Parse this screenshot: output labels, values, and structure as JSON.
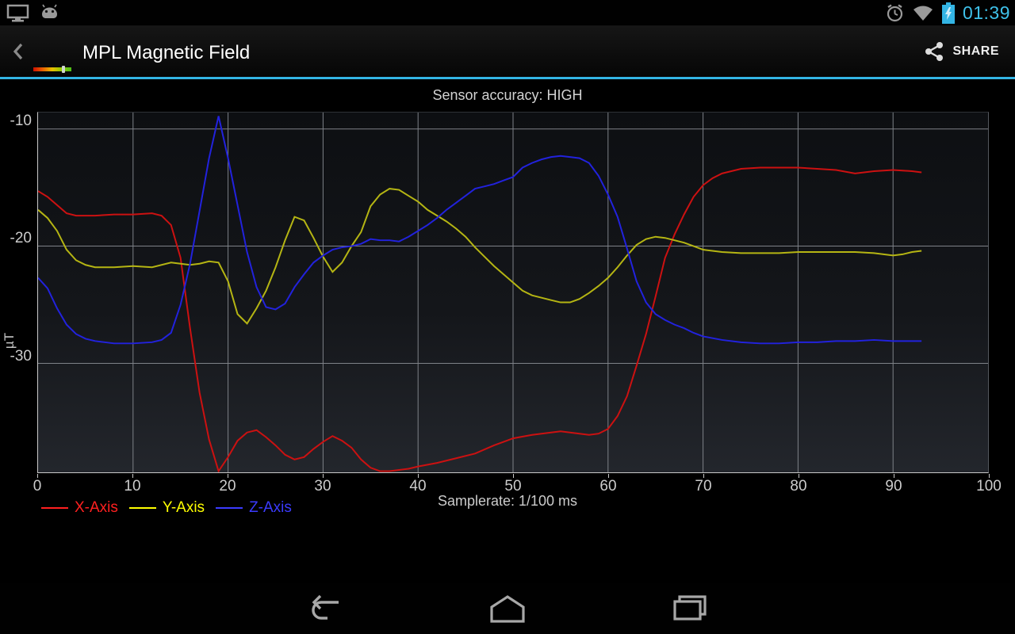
{
  "status_bar": {
    "time": "01:39",
    "left_icons": [
      "display-mirroring-icon",
      "usb-debugging-android-icon"
    ],
    "right_icons": [
      "alarm-icon",
      "wifi-icon",
      "battery-charging-icon"
    ],
    "accent_color": "#3fc1ea"
  },
  "action_bar": {
    "title": "MPL Magnetic Field",
    "share_label": "SHARE",
    "underline_color": "#33b5e5"
  },
  "chart_data": {
    "type": "line",
    "title": "Sensor accuracy: HIGH",
    "xlabel": "Samplerate: 1/100 ms",
    "ylabel": "µT",
    "xlim": [
      0,
      100
    ],
    "ylim": [
      -39.3,
      -8.6
    ],
    "x_ticks": [
      0,
      10,
      20,
      30,
      40,
      50,
      60,
      70,
      80,
      90,
      100
    ],
    "y_ticks": [
      -10,
      -20,
      -30
    ],
    "grid": true,
    "legend_position": "bottom-left",
    "series": [
      {
        "name": "X-Axis",
        "color": "#cc1111",
        "legend_color": "#ff2020",
        "points": [
          [
            0,
            -15.3
          ],
          [
            1,
            -15.8
          ],
          [
            2,
            -16.5
          ],
          [
            3,
            -17.2
          ],
          [
            4,
            -17.4
          ],
          [
            6,
            -17.4
          ],
          [
            8,
            -17.3
          ],
          [
            10,
            -17.3
          ],
          [
            12,
            -17.2
          ],
          [
            13,
            -17.4
          ],
          [
            14,
            -18.2
          ],
          [
            15,
            -21.0
          ],
          [
            16,
            -27.0
          ],
          [
            17,
            -32.5
          ],
          [
            18,
            -36.5
          ],
          [
            19,
            -39.2
          ],
          [
            20,
            -38.0
          ],
          [
            21,
            -36.6
          ],
          [
            22,
            -35.9
          ],
          [
            23,
            -35.7
          ],
          [
            24,
            -36.3
          ],
          [
            25,
            -37.0
          ],
          [
            26,
            -37.8
          ],
          [
            27,
            -38.2
          ],
          [
            28,
            -38.0
          ],
          [
            29,
            -37.3
          ],
          [
            30,
            -36.7
          ],
          [
            31,
            -36.2
          ],
          [
            32,
            -36.6
          ],
          [
            33,
            -37.2
          ],
          [
            34,
            -38.2
          ],
          [
            35,
            -38.9
          ],
          [
            36,
            -39.2
          ],
          [
            37,
            -39.2
          ],
          [
            38,
            -39.1
          ],
          [
            39,
            -39.0
          ],
          [
            40,
            -38.8
          ],
          [
            42,
            -38.5
          ],
          [
            44,
            -38.1
          ],
          [
            46,
            -37.7
          ],
          [
            48,
            -37.0
          ],
          [
            50,
            -36.4
          ],
          [
            52,
            -36.1
          ],
          [
            54,
            -35.9
          ],
          [
            55,
            -35.8
          ],
          [
            56,
            -35.9
          ],
          [
            57,
            -36.0
          ],
          [
            58,
            -36.1
          ],
          [
            59,
            -36.0
          ],
          [
            60,
            -35.6
          ],
          [
            61,
            -34.5
          ],
          [
            62,
            -32.8
          ],
          [
            63,
            -30.2
          ],
          [
            64,
            -27.5
          ],
          [
            65,
            -24.3
          ],
          [
            66,
            -21.0
          ],
          [
            67,
            -19.0
          ],
          [
            68,
            -17.3
          ],
          [
            69,
            -15.8
          ],
          [
            70,
            -14.8
          ],
          [
            71,
            -14.2
          ],
          [
            72,
            -13.8
          ],
          [
            74,
            -13.4
          ],
          [
            76,
            -13.3
          ],
          [
            78,
            -13.3
          ],
          [
            80,
            -13.3
          ],
          [
            82,
            -13.4
          ],
          [
            84,
            -13.5
          ],
          [
            86,
            -13.8
          ],
          [
            88,
            -13.6
          ],
          [
            90,
            -13.5
          ],
          [
            92,
            -13.6
          ],
          [
            93,
            -13.7
          ]
        ]
      },
      {
        "name": "Y-Axis",
        "color": "#b5b513",
        "legend_color": "#ffff00",
        "points": [
          [
            0,
            -16.9
          ],
          [
            1,
            -17.6
          ],
          [
            2,
            -18.7
          ],
          [
            3,
            -20.3
          ],
          [
            4,
            -21.2
          ],
          [
            5,
            -21.6
          ],
          [
            6,
            -21.8
          ],
          [
            8,
            -21.8
          ],
          [
            10,
            -21.7
          ],
          [
            12,
            -21.8
          ],
          [
            14,
            -21.4
          ],
          [
            15,
            -21.5
          ],
          [
            16,
            -21.6
          ],
          [
            17,
            -21.5
          ],
          [
            18,
            -21.3
          ],
          [
            19,
            -21.4
          ],
          [
            20,
            -23.0
          ],
          [
            21,
            -25.8
          ],
          [
            22,
            -26.6
          ],
          [
            23,
            -25.3
          ],
          [
            24,
            -23.8
          ],
          [
            25,
            -21.8
          ],
          [
            26,
            -19.5
          ],
          [
            27,
            -17.5
          ],
          [
            28,
            -17.8
          ],
          [
            29,
            -19.3
          ],
          [
            30,
            -20.9
          ],
          [
            31,
            -22.2
          ],
          [
            32,
            -21.4
          ],
          [
            33,
            -20.0
          ],
          [
            34,
            -18.8
          ],
          [
            35,
            -16.6
          ],
          [
            36,
            -15.6
          ],
          [
            37,
            -15.1
          ],
          [
            38,
            -15.2
          ],
          [
            39,
            -15.7
          ],
          [
            40,
            -16.2
          ],
          [
            41,
            -16.9
          ],
          [
            42,
            -17.4
          ],
          [
            43,
            -17.9
          ],
          [
            44,
            -18.5
          ],
          [
            45,
            -19.2
          ],
          [
            46,
            -20.1
          ],
          [
            47,
            -20.9
          ],
          [
            48,
            -21.7
          ],
          [
            49,
            -22.4
          ],
          [
            50,
            -23.1
          ],
          [
            51,
            -23.8
          ],
          [
            52,
            -24.2
          ],
          [
            53,
            -24.4
          ],
          [
            54,
            -24.6
          ],
          [
            55,
            -24.8
          ],
          [
            56,
            -24.8
          ],
          [
            57,
            -24.5
          ],
          [
            58,
            -24.0
          ],
          [
            59,
            -23.4
          ],
          [
            60,
            -22.7
          ],
          [
            61,
            -21.8
          ],
          [
            62,
            -20.8
          ],
          [
            63,
            -19.9
          ],
          [
            64,
            -19.4
          ],
          [
            65,
            -19.2
          ],
          [
            66,
            -19.3
          ],
          [
            67,
            -19.5
          ],
          [
            68,
            -19.7
          ],
          [
            69,
            -20.0
          ],
          [
            70,
            -20.3
          ],
          [
            72,
            -20.5
          ],
          [
            74,
            -20.6
          ],
          [
            76,
            -20.6
          ],
          [
            78,
            -20.6
          ],
          [
            80,
            -20.5
          ],
          [
            82,
            -20.5
          ],
          [
            84,
            -20.5
          ],
          [
            86,
            -20.5
          ],
          [
            88,
            -20.6
          ],
          [
            90,
            -20.8
          ],
          [
            91,
            -20.7
          ],
          [
            92,
            -20.5
          ],
          [
            93,
            -20.4
          ]
        ]
      },
      {
        "name": "Z-Axis",
        "color": "#2222dd",
        "legend_color": "#3b3bff",
        "points": [
          [
            0,
            -22.7
          ],
          [
            1,
            -23.6
          ],
          [
            2,
            -25.3
          ],
          [
            3,
            -26.7
          ],
          [
            4,
            -27.5
          ],
          [
            5,
            -27.9
          ],
          [
            6,
            -28.1
          ],
          [
            7,
            -28.2
          ],
          [
            8,
            -28.3
          ],
          [
            10,
            -28.3
          ],
          [
            12,
            -28.2
          ],
          [
            13,
            -28.0
          ],
          [
            14,
            -27.4
          ],
          [
            15,
            -25.0
          ],
          [
            16,
            -21.5
          ],
          [
            17,
            -17.0
          ],
          [
            18,
            -12.5
          ],
          [
            19,
            -8.9
          ],
          [
            20,
            -12.5
          ],
          [
            21,
            -16.5
          ],
          [
            22,
            -20.5
          ],
          [
            23,
            -23.5
          ],
          [
            24,
            -25.2
          ],
          [
            25,
            -25.4
          ],
          [
            26,
            -24.9
          ],
          [
            27,
            -23.5
          ],
          [
            28,
            -22.4
          ],
          [
            29,
            -21.4
          ],
          [
            30,
            -20.8
          ],
          [
            31,
            -20.3
          ],
          [
            32,
            -20.1
          ],
          [
            33,
            -20.0
          ],
          [
            34,
            -19.8
          ],
          [
            35,
            -19.4
          ],
          [
            36,
            -19.5
          ],
          [
            37,
            -19.5
          ],
          [
            38,
            -19.6
          ],
          [
            39,
            -19.2
          ],
          [
            40,
            -18.7
          ],
          [
            41,
            -18.2
          ],
          [
            42,
            -17.6
          ],
          [
            43,
            -16.9
          ],
          [
            44,
            -16.3
          ],
          [
            45,
            -15.7
          ],
          [
            46,
            -15.1
          ],
          [
            47,
            -14.9
          ],
          [
            48,
            -14.7
          ],
          [
            49,
            -14.4
          ],
          [
            50,
            -14.1
          ],
          [
            51,
            -13.3
          ],
          [
            52,
            -12.9
          ],
          [
            53,
            -12.6
          ],
          [
            54,
            -12.4
          ],
          [
            55,
            -12.3
          ],
          [
            56,
            -12.4
          ],
          [
            57,
            -12.5
          ],
          [
            58,
            -12.9
          ],
          [
            59,
            -14.0
          ],
          [
            60,
            -15.6
          ],
          [
            61,
            -17.5
          ],
          [
            62,
            -20.2
          ],
          [
            63,
            -23.0
          ],
          [
            64,
            -24.8
          ],
          [
            65,
            -25.8
          ],
          [
            66,
            -26.3
          ],
          [
            67,
            -26.7
          ],
          [
            68,
            -27.0
          ],
          [
            69,
            -27.4
          ],
          [
            70,
            -27.7
          ],
          [
            72,
            -28.0
          ],
          [
            74,
            -28.2
          ],
          [
            76,
            -28.3
          ],
          [
            78,
            -28.3
          ],
          [
            80,
            -28.2
          ],
          [
            82,
            -28.2
          ],
          [
            84,
            -28.1
          ],
          [
            86,
            -28.1
          ],
          [
            88,
            -28.0
          ],
          [
            90,
            -28.1
          ],
          [
            92,
            -28.1
          ],
          [
            93,
            -28.1
          ]
        ]
      }
    ]
  },
  "nav_bar": {
    "buttons": [
      "back-nav-icon",
      "home-nav-icon",
      "recents-nav-icon"
    ]
  }
}
